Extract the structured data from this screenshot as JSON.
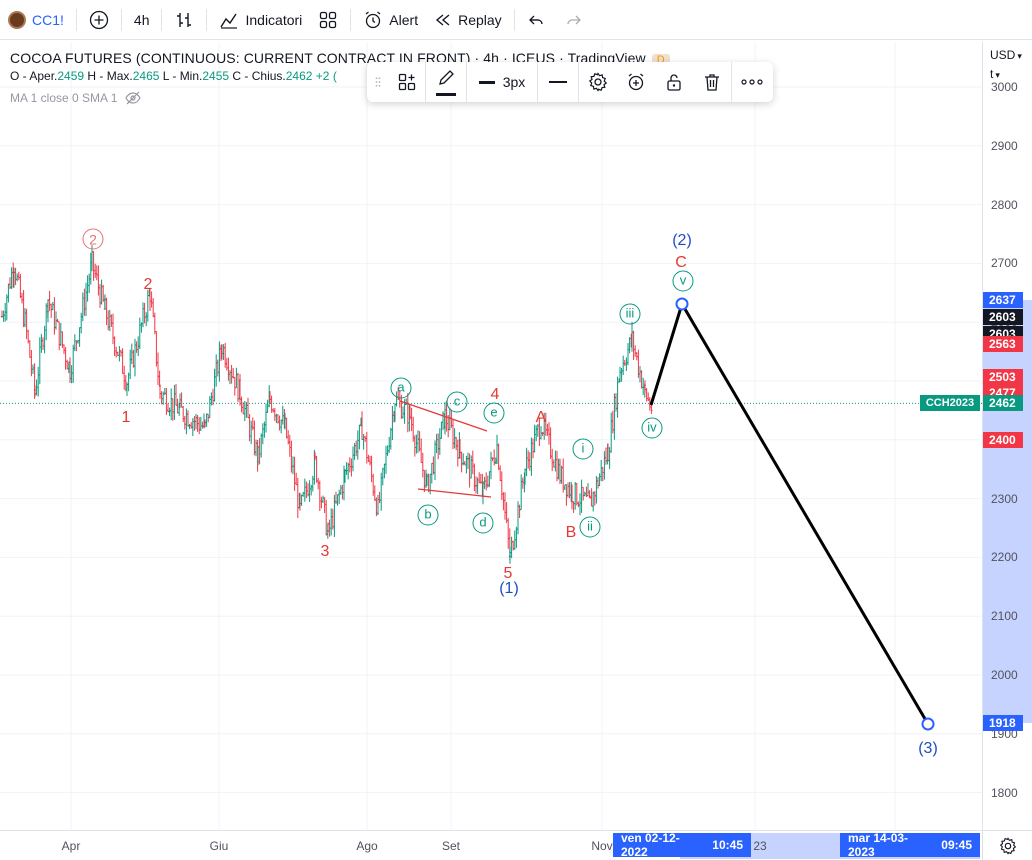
{
  "toolbar": {
    "symbol": "CC1!",
    "interval": "4h",
    "indicators_label": "Indicatori",
    "alert_label": "Alert",
    "replay_label": "Replay"
  },
  "legend": {
    "title": "COCOA FUTURES (CONTINUOUS: CURRENT CONTRACT IN FRONT) · 4h · ICEUS · TradingView",
    "badge": "D",
    "o_label": "O - Aper.",
    "o_value": "2459",
    "h_label": "H - Max.",
    "h_value": "2465",
    "l_label": "L - Min.",
    "l_value": "2455",
    "c_label": "C - Chius.",
    "c_value": "2462",
    "change": "+2 (",
    "ma_label": "MA 1 close 0 SMA 1"
  },
  "draw_toolbar": {
    "width_label": "3px"
  },
  "price_axis": {
    "currency": "USD",
    "currency_sub": "t",
    "ticks": [
      "3000",
      "2900",
      "2800",
      "2700",
      "2600",
      "2500",
      "2400",
      "2300",
      "2200",
      "2100",
      "2000",
      "1900",
      "1800"
    ],
    "labels": [
      {
        "text": "2637",
        "color": "#2962ff",
        "price": 2637
      },
      {
        "text": "2603",
        "color": "#131722",
        "price": 2609
      },
      {
        "text": "2603",
        "color": "#131722",
        "price": 2580
      },
      {
        "text": "2563",
        "color": "#f23645",
        "price": 2563
      },
      {
        "text": "2503",
        "color": "#f23645",
        "price": 2507
      },
      {
        "text": "2477",
        "color": "#f23645",
        "price": 2479
      },
      {
        "text": "2462",
        "color": "#089981",
        "price": 2462
      },
      {
        "text": "2400",
        "color": "#f23645",
        "price": 2400
      },
      {
        "text": "1918",
        "color": "#2962ff",
        "price": 1918
      }
    ],
    "ticker_tag": "CCH2023"
  },
  "time_axis": {
    "ticks": [
      "Apr",
      "Giu",
      "Ago",
      "Set",
      "Nov"
    ],
    "hl_start": "ven 02-12-2022",
    "hl_start_time": "10:45",
    "partial": "23",
    "hl_end": "mar 14-03-2023",
    "hl_end_time": "09:45"
  },
  "waves": {
    "circle_2_pink": "2",
    "red_2": "2",
    "red_1": "1",
    "red_3": "3",
    "red_4": "4",
    "red_5": "5",
    "red_A": "A",
    "red_B": "B",
    "red_C": "C",
    "blue_1": "(1)",
    "blue_2": "(2)",
    "blue_3": "(3)",
    "g_a": "a",
    "g_b": "b",
    "g_c": "c",
    "g_d": "d",
    "g_e": "e",
    "g_i": "i",
    "g_ii": "ii",
    "g_iii": "iii",
    "g_iv": "iv",
    "g_v": "v"
  },
  "chart_data": {
    "type": "line",
    "title": "COCOA FUTURES (CONTINUOUS: CURRENT CONTRACT IN FRONT) · 4h · ICEUS",
    "ylim": [
      1770,
      3020
    ],
    "last_price": 2462,
    "projection": [
      {
        "label": "iv",
        "price": 2462
      },
      {
        "label": "(2)",
        "price": 2603
      },
      {
        "label": "(3)",
        "price": 1918
      }
    ],
    "colors": {
      "up": "#089981",
      "down": "#f23645",
      "projection": "#000000"
    }
  }
}
